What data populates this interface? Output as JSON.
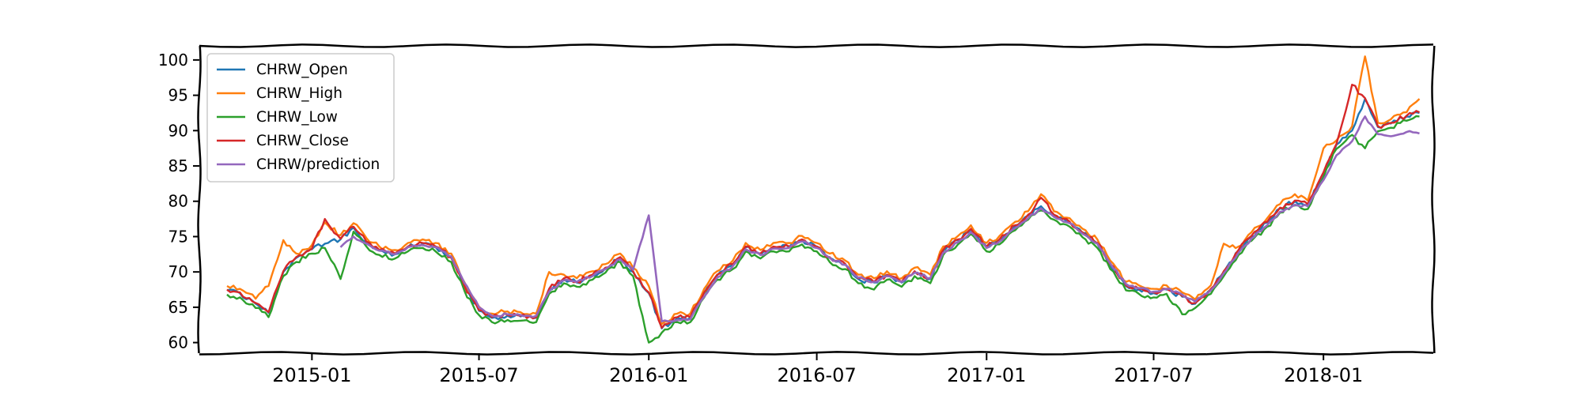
{
  "chart_data": {
    "type": "line",
    "style": "xkcd",
    "title": "",
    "xlabel": "",
    "ylabel": "",
    "xlim": [
      "2014-09-01",
      "2018-04-30"
    ],
    "ylim": [
      58.5,
      102
    ],
    "grid": false,
    "legend_position": "top-left",
    "y_ticks": [
      60,
      65,
      70,
      75,
      80,
      85,
      90,
      95,
      100
    ],
    "x_ticks": [
      "2015-01",
      "2015-07",
      "2016-01",
      "2016-07",
      "2017-01",
      "2017-07",
      "2018-01"
    ],
    "x": [
      "2014-10-01",
      "2014-10-15",
      "2014-11-01",
      "2014-11-15",
      "2014-12-01",
      "2014-12-15",
      "2015-01-01",
      "2015-01-15",
      "2015-02-01",
      "2015-02-15",
      "2015-03-01",
      "2015-03-15",
      "2015-04-01",
      "2015-04-15",
      "2015-05-01",
      "2015-05-15",
      "2015-06-01",
      "2015-06-15",
      "2015-07-01",
      "2015-07-15",
      "2015-08-01",
      "2015-08-15",
      "2015-09-01",
      "2015-09-15",
      "2015-10-01",
      "2015-10-15",
      "2015-11-01",
      "2015-11-15",
      "2015-12-01",
      "2015-12-15",
      "2016-01-01",
      "2016-01-15",
      "2016-02-01",
      "2016-02-15",
      "2016-03-01",
      "2016-03-15",
      "2016-04-01",
      "2016-04-15",
      "2016-05-01",
      "2016-05-15",
      "2016-06-01",
      "2016-06-15",
      "2016-07-01",
      "2016-07-15",
      "2016-08-01",
      "2016-08-15",
      "2016-09-01",
      "2016-09-15",
      "2016-10-01",
      "2016-10-15",
      "2016-11-01",
      "2016-11-15",
      "2016-12-01",
      "2016-12-15",
      "2017-01-01",
      "2017-01-15",
      "2017-02-01",
      "2017-02-15",
      "2017-03-01",
      "2017-03-15",
      "2017-04-01",
      "2017-04-15",
      "2017-05-01",
      "2017-05-15",
      "2017-06-01",
      "2017-06-15",
      "2017-07-01",
      "2017-07-15",
      "2017-08-01",
      "2017-08-15",
      "2017-09-01",
      "2017-09-15",
      "2017-10-01",
      "2017-10-15",
      "2017-11-01",
      "2017-11-15",
      "2017-12-01",
      "2017-12-15",
      "2018-01-01",
      "2018-01-15",
      "2018-02-01",
      "2018-02-15",
      "2018-03-01",
      "2018-03-15",
      "2018-04-01",
      "2018-04-15"
    ],
    "series": [
      {
        "name": "CHRW_Open",
        "color": "#1f77b4",
        "values": [
          67.4,
          67.0,
          65.5,
          64.2,
          70.0,
          72.0,
          73.2,
          74.0,
          74.6,
          76.3,
          74.2,
          73.0,
          72.5,
          73.5,
          74.0,
          73.5,
          72.0,
          68.0,
          64.5,
          63.5,
          63.8,
          63.7,
          63.5,
          67.5,
          69.0,
          68.5,
          69.5,
          70.5,
          72.0,
          70.0,
          67.0,
          62.0,
          63.5,
          63.5,
          67.0,
          69.5,
          71.0,
          73.5,
          72.5,
          73.5,
          73.5,
          74.5,
          73.5,
          72.0,
          71.0,
          69.0,
          68.5,
          69.5,
          68.5,
          70.0,
          69.0,
          73.0,
          74.5,
          76.0,
          73.5,
          74.5,
          76.5,
          78.0,
          79.3,
          78.0,
          77.0,
          75.5,
          74.0,
          71.0,
          68.0,
          67.5,
          67.0,
          67.5,
          66.5,
          65.5,
          67.5,
          70.0,
          73.0,
          75.0,
          77.0,
          79.0,
          80.0,
          79.5,
          84.0,
          88.0,
          90.0,
          94.5,
          90.5,
          91.0,
          92.0,
          92.5
        ]
      },
      {
        "name": "CHRW_High",
        "color": "#ff7f0e",
        "values": [
          68.0,
          67.6,
          66.2,
          68.0,
          74.5,
          72.6,
          73.8,
          77.0,
          75.2,
          76.9,
          74.8,
          73.6,
          73.1,
          74.1,
          74.6,
          74.1,
          72.6,
          68.6,
          65.1,
          64.1,
          64.4,
          64.3,
          64.1,
          70.0,
          69.6,
          69.1,
          70.1,
          71.1,
          72.6,
          70.6,
          68.0,
          62.6,
          64.1,
          64.1,
          67.6,
          70.1,
          71.6,
          74.1,
          73.1,
          74.1,
          74.1,
          75.1,
          74.1,
          72.6,
          71.6,
          69.6,
          69.1,
          70.1,
          69.1,
          70.6,
          69.6,
          73.6,
          75.1,
          76.6,
          74.1,
          75.1,
          77.1,
          78.6,
          81.0,
          78.6,
          77.6,
          76.1,
          74.6,
          71.6,
          68.6,
          68.1,
          67.6,
          68.1,
          67.1,
          66.1,
          68.1,
          74.0,
          73.6,
          75.6,
          77.6,
          79.6,
          81.0,
          80.1,
          87.5,
          88.6,
          90.6,
          100.5,
          91.1,
          91.6,
          92.6,
          94.5
        ]
      },
      {
        "name": "CHRW_Low",
        "color": "#2ca02c",
        "values": [
          66.8,
          66.4,
          64.9,
          63.6,
          69.4,
          71.4,
          72.6,
          73.4,
          69.0,
          75.7,
          73.6,
          72.4,
          71.9,
          72.9,
          73.4,
          72.9,
          71.4,
          67.4,
          63.9,
          62.9,
          63.2,
          63.1,
          62.9,
          66.9,
          68.4,
          67.9,
          68.9,
          69.9,
          71.4,
          69.4,
          60.0,
          61.4,
          62.9,
          62.9,
          66.4,
          68.9,
          70.4,
          72.9,
          71.9,
          72.9,
          72.9,
          73.9,
          72.9,
          71.4,
          70.4,
          68.4,
          67.5,
          68.9,
          67.9,
          69.4,
          68.4,
          72.4,
          73.9,
          75.4,
          72.9,
          73.9,
          75.9,
          77.4,
          78.7,
          77.4,
          76.4,
          74.9,
          73.4,
          70.4,
          67.4,
          66.9,
          66.4,
          66.9,
          64.0,
          64.9,
          66.9,
          69.4,
          72.4,
          74.4,
          76.4,
          78.4,
          79.4,
          78.9,
          83.4,
          87.4,
          89.4,
          87.5,
          89.9,
          90.4,
          91.4,
          92.0
        ]
      },
      {
        "name": "CHRW_Close",
        "color": "#d62728",
        "values": [
          67.5,
          67.1,
          65.6,
          64.3,
          70.1,
          72.1,
          73.3,
          77.5,
          74.7,
          76.4,
          74.3,
          73.1,
          72.6,
          73.6,
          74.1,
          73.6,
          72.1,
          68.1,
          64.6,
          63.6,
          63.9,
          63.8,
          63.6,
          67.6,
          69.1,
          68.6,
          69.6,
          70.6,
          72.1,
          70.1,
          67.1,
          62.1,
          63.6,
          63.6,
          67.1,
          69.6,
          71.1,
          73.6,
          72.6,
          73.6,
          73.6,
          74.6,
          73.6,
          72.1,
          71.1,
          69.1,
          68.6,
          69.6,
          68.6,
          70.1,
          69.1,
          73.1,
          74.6,
          76.1,
          73.6,
          74.6,
          76.6,
          78.1,
          80.5,
          78.1,
          77.1,
          75.6,
          74.1,
          71.1,
          68.1,
          67.6,
          67.1,
          67.6,
          66.6,
          65.6,
          67.6,
          70.1,
          73.1,
          75.1,
          77.1,
          79.1,
          80.1,
          79.6,
          84.1,
          88.1,
          96.5,
          94.6,
          90.6,
          91.1,
          92.1,
          92.6
        ]
      },
      {
        "name": "CHRW/prediction",
        "color": "#9467bd",
        "values": [
          null,
          null,
          null,
          null,
          null,
          null,
          null,
          null,
          73.5,
          75.0,
          74.0,
          73.0,
          72.5,
          73.5,
          73.8,
          73.5,
          72.2,
          68.5,
          65.0,
          63.8,
          64.0,
          63.9,
          63.8,
          67.2,
          68.8,
          68.6,
          69.4,
          70.4,
          71.8,
          70.3,
          78.0,
          63.0,
          63.2,
          63.3,
          66.5,
          69.2,
          70.8,
          73.2,
          72.4,
          73.3,
          73.4,
          74.3,
          73.4,
          72.0,
          71.0,
          69.2,
          68.6,
          69.4,
          68.6,
          69.9,
          69.1,
          72.7,
          74.2,
          75.6,
          73.4,
          74.3,
          76.2,
          77.6,
          79.0,
          77.8,
          76.9,
          75.4,
          74.0,
          71.2,
          68.3,
          67.7,
          67.2,
          67.6,
          66.8,
          65.8,
          67.4,
          69.8,
          72.7,
          74.7,
          76.6,
          78.5,
          79.5,
          79.3,
          83.0,
          86.5,
          88.5,
          92.0,
          89.5,
          89.2,
          89.8,
          89.6
        ]
      }
    ]
  }
}
